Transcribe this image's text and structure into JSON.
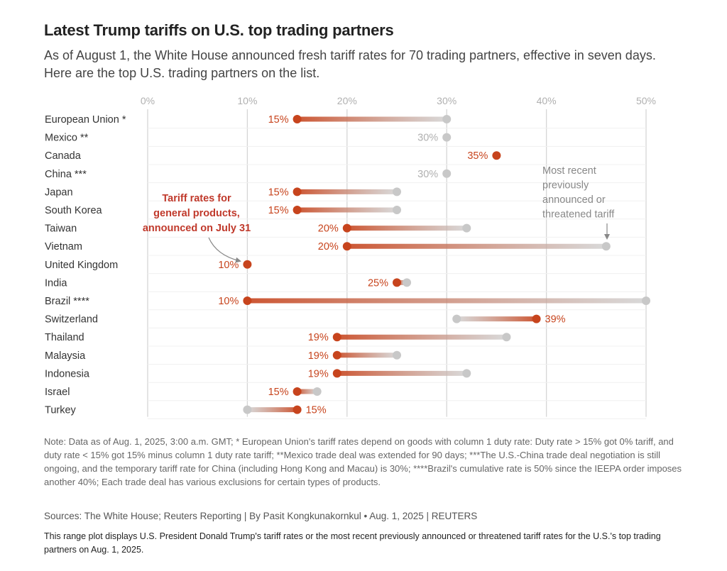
{
  "header": {
    "title": "Latest Trump tariffs on U.S. top trading partners",
    "subtitle": "As of August 1, the White House announced fresh tariff rates for 70 trading partners, effective in seven days. Here are the top U.S. trading partners on the list."
  },
  "colors": {
    "accent": "#c7441d",
    "previous": "#c8c8c8",
    "annotation_red": "#c0392b",
    "grid": "#dddddd"
  },
  "chart_data": {
    "type": "range-dot",
    "x_axis": {
      "min": 0,
      "max": 50,
      "ticks": [
        "0%",
        "10%",
        "20%",
        "30%",
        "40%",
        "50%"
      ],
      "tick_values": [
        0,
        10,
        20,
        30,
        40,
        50
      ]
    },
    "legend": {
      "current_label": "Tariff rates for general products, announced on July 31",
      "previous_label": "Most recent previously announced or threatened tariff"
    },
    "series": [
      {
        "country": "European Union *",
        "current": 15,
        "previous": 30,
        "label": "15%"
      },
      {
        "country": "Mexico **",
        "current": 30,
        "previous": 30,
        "label": "30%"
      },
      {
        "country": "Canada",
        "current": 35,
        "previous": 35,
        "label": "35%"
      },
      {
        "country": "China ***",
        "current": 30,
        "previous": 30,
        "label": "30%"
      },
      {
        "country": "Japan",
        "current": 15,
        "previous": 25,
        "label": "15%"
      },
      {
        "country": "South Korea",
        "current": 15,
        "previous": 25,
        "label": "15%"
      },
      {
        "country": "Taiwan",
        "current": 20,
        "previous": 32,
        "label": "20%"
      },
      {
        "country": "Vietnam",
        "current": 20,
        "previous": 46,
        "label": "20%"
      },
      {
        "country": "United Kingdom",
        "current": 10,
        "previous": 10,
        "label": "10%"
      },
      {
        "country": "India",
        "current": 25,
        "previous": 26,
        "label": "25%"
      },
      {
        "country": "Brazil ****",
        "current": 10,
        "previous": 50,
        "label": "10%"
      },
      {
        "country": "Switzerland",
        "current": 39,
        "previous": 31,
        "label": "39%"
      },
      {
        "country": "Thailand",
        "current": 19,
        "previous": 36,
        "label": "19%"
      },
      {
        "country": "Malaysia",
        "current": 19,
        "previous": 25,
        "label": "19%"
      },
      {
        "country": "Indonesia",
        "current": 19,
        "previous": 32,
        "label": "19%"
      },
      {
        "country": "Israel",
        "current": 15,
        "previous": 17,
        "label": "15%"
      },
      {
        "country": "Turkey",
        "current": 15,
        "previous": 10,
        "label": "15%"
      }
    ]
  },
  "footer": {
    "note": "Note: Data as of Aug. 1, 2025, 3:00 a.m. GMT; * European Union's tariff rates depend on goods with column 1 duty rate: Duty rate > 15% got 0% tariff, and duty rate < 15% got 15% minus column 1 duty rate tariff; **Mexico trade deal was extended for 90 days; ***The U.S.-China trade deal negotiation is still ongoing, and the temporary tariff rate for China (including Hong Kong and Macau) is 30%; ****Brazil's cumulative rate is 50% since the IEEPA order imposes another 40%; Each trade deal has various exclusions for certain types of products.",
    "sources": "Sources: The White House; Reuters Reporting | By Pasit Kongkunakornkul • Aug. 1, 2025 | REUTERS",
    "alt_text": "This range plot displays U.S. President Donald Trump's tariff rates or the most recent previously announced or threatened tariff rates for the U.S.'s top trading partners on Aug. 1, 2025."
  }
}
